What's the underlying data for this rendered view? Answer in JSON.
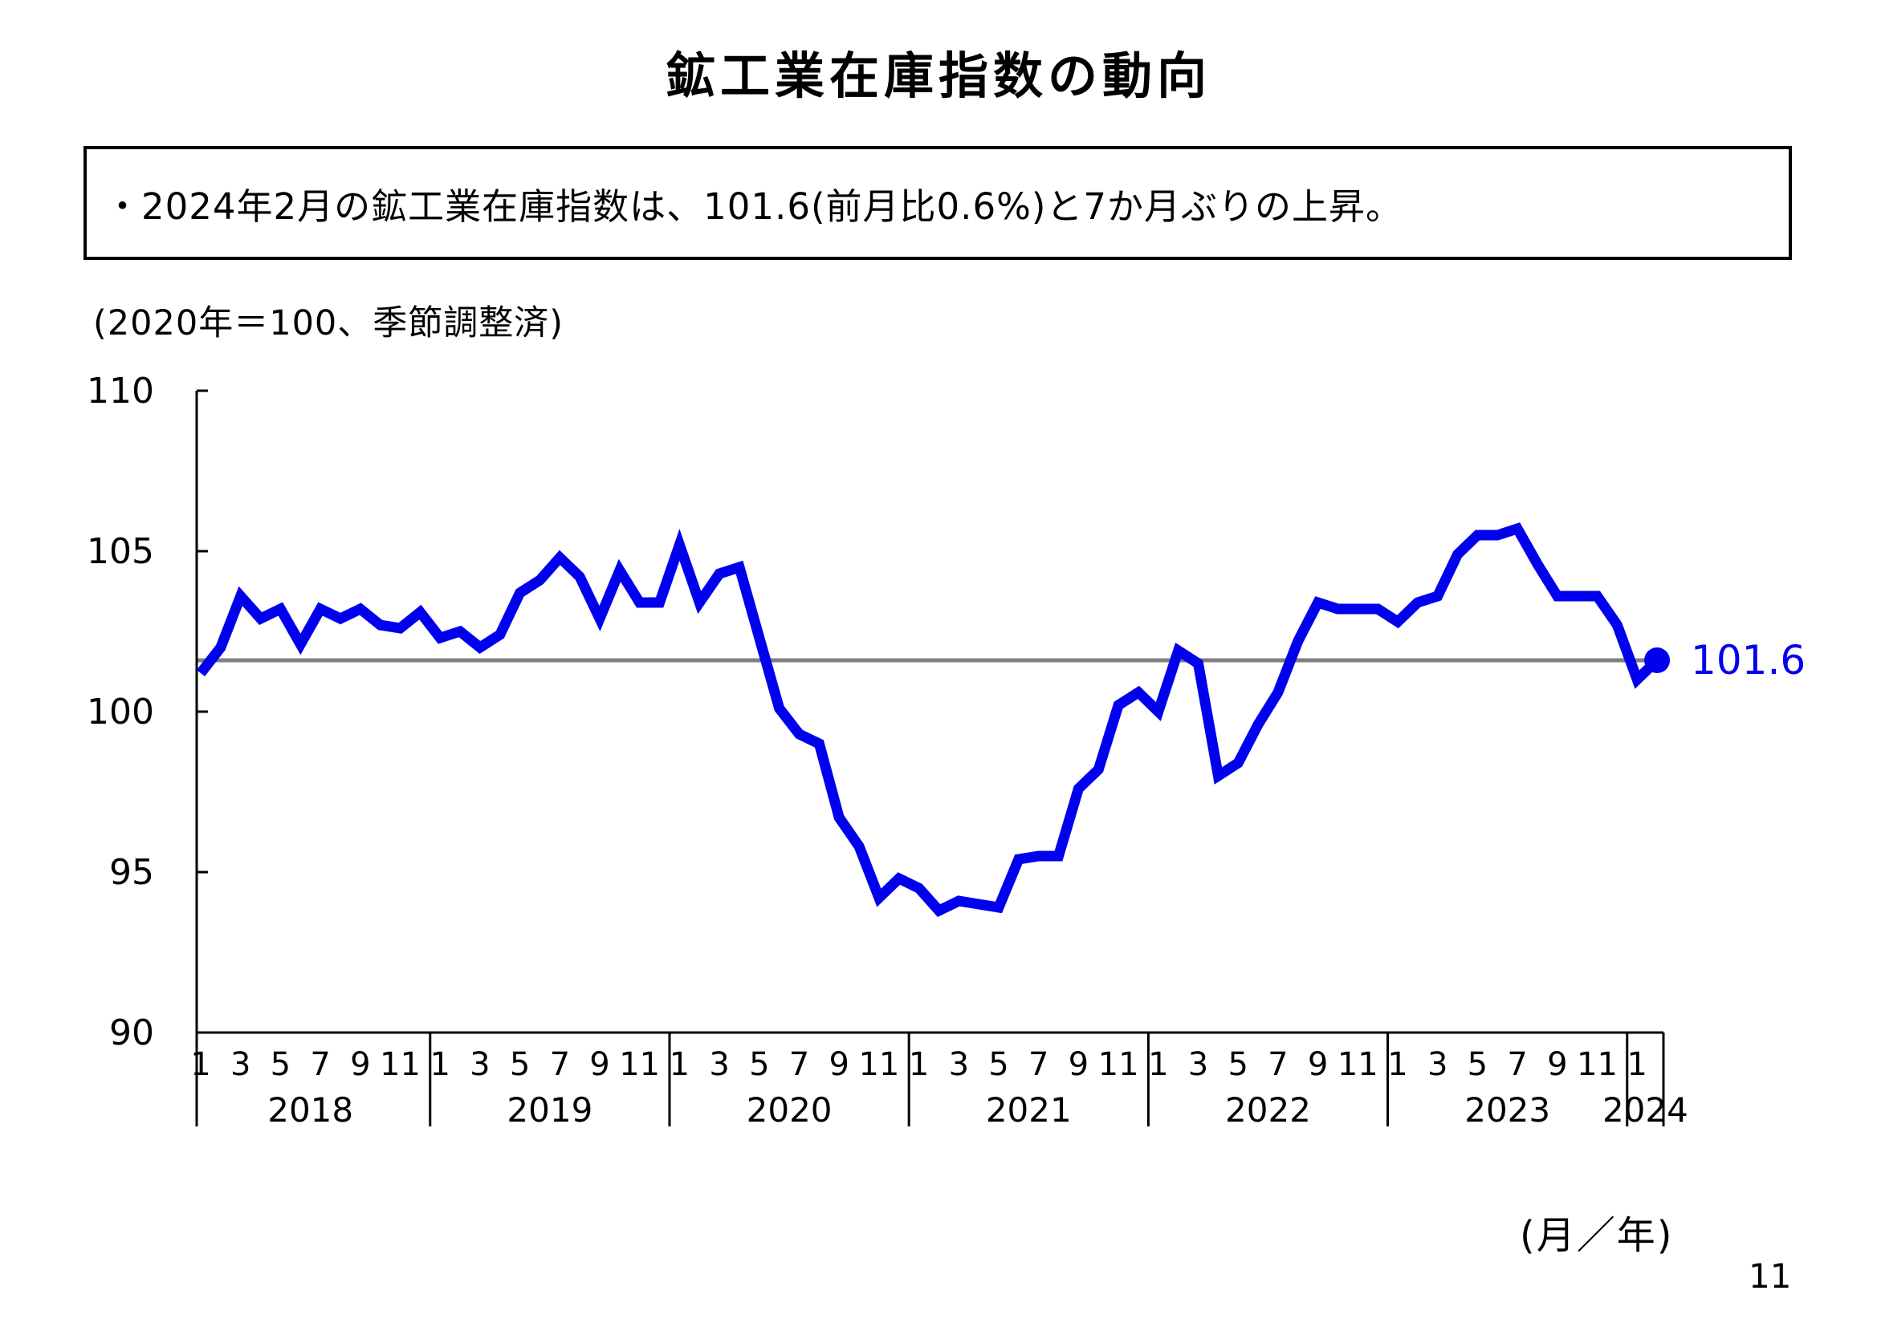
{
  "page": {
    "title": "鉱工業在庫指数の動向",
    "bullet_note": "・2024年2月の鉱工業在庫指数は、101.6(前月比0.6%)と7か月ぶりの上昇。",
    "page_number": "11"
  },
  "chart_data": {
    "type": "line",
    "title": "鉱工業在庫指数の動向",
    "unit_note": "(2020年＝100、季節調整済)",
    "x_axis_note": "(月／年)",
    "ylim": [
      90,
      110
    ],
    "yticks": [
      110,
      105,
      100,
      95,
      90
    ],
    "grid": false,
    "legend": "none",
    "month_tick_labels": [
      "1",
      "3",
      "5",
      "7",
      "9",
      "11"
    ],
    "years": [
      {
        "label": "2018",
        "values": [
          101.2,
          102.0,
          103.6,
          102.9,
          103.2,
          102.1,
          103.2,
          102.9,
          103.2,
          102.7,
          102.6,
          103.1
        ]
      },
      {
        "label": "2019",
        "values": [
          102.3,
          102.5,
          102.0,
          102.4,
          103.7,
          104.1,
          104.8,
          104.2,
          102.9,
          104.4,
          103.4,
          103.4
        ]
      },
      {
        "label": "2020",
        "values": [
          105.2,
          103.4,
          104.3,
          104.5,
          102.3,
          100.1,
          99.3,
          99.0,
          96.7,
          95.8,
          94.2,
          94.8
        ]
      },
      {
        "label": "2021",
        "values": [
          94.5,
          93.8,
          94.1,
          94.0,
          93.9,
          95.4,
          95.5,
          95.5,
          97.6,
          98.2,
          100.2,
          100.6
        ]
      },
      {
        "label": "2022",
        "values": [
          100.0,
          101.9,
          101.5,
          98.0,
          98.4,
          99.6,
          100.6,
          102.2,
          103.4,
          103.2,
          103.2,
          103.2
        ]
      },
      {
        "label": "2023",
        "values": [
          102.8,
          103.4,
          103.6,
          104.9,
          105.5,
          105.5,
          105.7,
          104.6,
          103.6,
          103.6,
          103.6,
          102.7
        ]
      },
      {
        "label": "2024",
        "values": [
          101.0,
          101.6
        ]
      }
    ],
    "reference_line_value": 101.6,
    "latest_value_label": "101.6",
    "colors": {
      "line": "#0000ee",
      "reference_line": "#808080",
      "axis": "#000000"
    }
  }
}
